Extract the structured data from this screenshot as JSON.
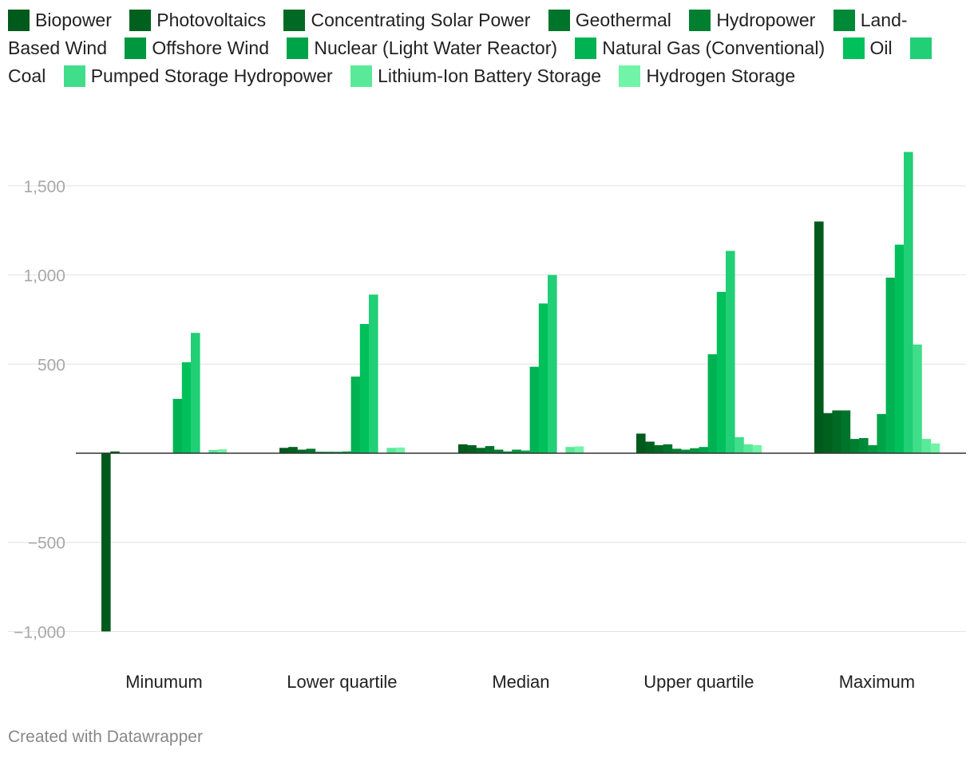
{
  "chart_data": {
    "type": "bar",
    "categories": [
      "Minumum",
      "Lower quartile",
      "Median",
      "Upper quartile",
      "Maximum"
    ],
    "ylim": [
      -1000,
      1700
    ],
    "yticks": [
      -1000,
      -500,
      500,
      1000,
      1500
    ],
    "ytick_labels": [
      "−1,000",
      "−500",
      "500",
      "1,000",
      "1,500"
    ],
    "grid": true,
    "legend_position": "top",
    "series": [
      {
        "name": "Biopower",
        "color": "#005a1c",
        "values": [
          -1000,
          30,
          50,
          110,
          1300
        ]
      },
      {
        "name": "Photovoltaics",
        "color": "#00611f",
        "values": [
          10,
          35,
          45,
          65,
          225
        ]
      },
      {
        "name": "Concentrating Solar Power",
        "color": "#006a24",
        "values": [
          0,
          20,
          30,
          45,
          240
        ]
      },
      {
        "name": "Geothermal",
        "color": "#00742a",
        "values": [
          0,
          25,
          40,
          50,
          240
        ]
      },
      {
        "name": "Hydropower",
        "color": "#007f31",
        "values": [
          0,
          8,
          20,
          25,
          80
        ]
      },
      {
        "name": "Land-Based Wind",
        "color": "#008a38",
        "values": [
          0,
          8,
          10,
          20,
          85
        ]
      },
      {
        "name": "Offshore Wind",
        "color": "#00973f",
        "values": [
          0,
          8,
          20,
          28,
          45
        ]
      },
      {
        "name": "Nuclear (Light Water Reactor)",
        "color": "#00a448",
        "values": [
          0,
          10,
          15,
          35,
          220
        ]
      },
      {
        "name": "Natural Gas (Conventional)",
        "color": "#00b251",
        "values": [
          305,
          430,
          485,
          555,
          985
        ]
      },
      {
        "name": "Oil",
        "color": "#00c05b",
        "values": [
          510,
          725,
          840,
          905,
          1170
        ]
      },
      {
        "name": "Coal",
        "color": "#20cf76",
        "values": [
          675,
          890,
          1000,
          1135,
          1690
        ]
      },
      {
        "name": "Pumped Storage Hydropower",
        "color": "#40dd8a",
        "values": [
          0,
          0,
          0,
          90,
          610
        ]
      },
      {
        "name": "Lithium-Ion Battery Storage",
        "color": "#5ae998",
        "values": [
          18,
          30,
          35,
          50,
          80
        ]
      },
      {
        "name": "Hydrogen Storage",
        "color": "#72f4a8",
        "values": [
          22,
          32,
          38,
          45,
          55
        ]
      }
    ]
  },
  "footer": {
    "credit": "Created with Datawrapper"
  }
}
